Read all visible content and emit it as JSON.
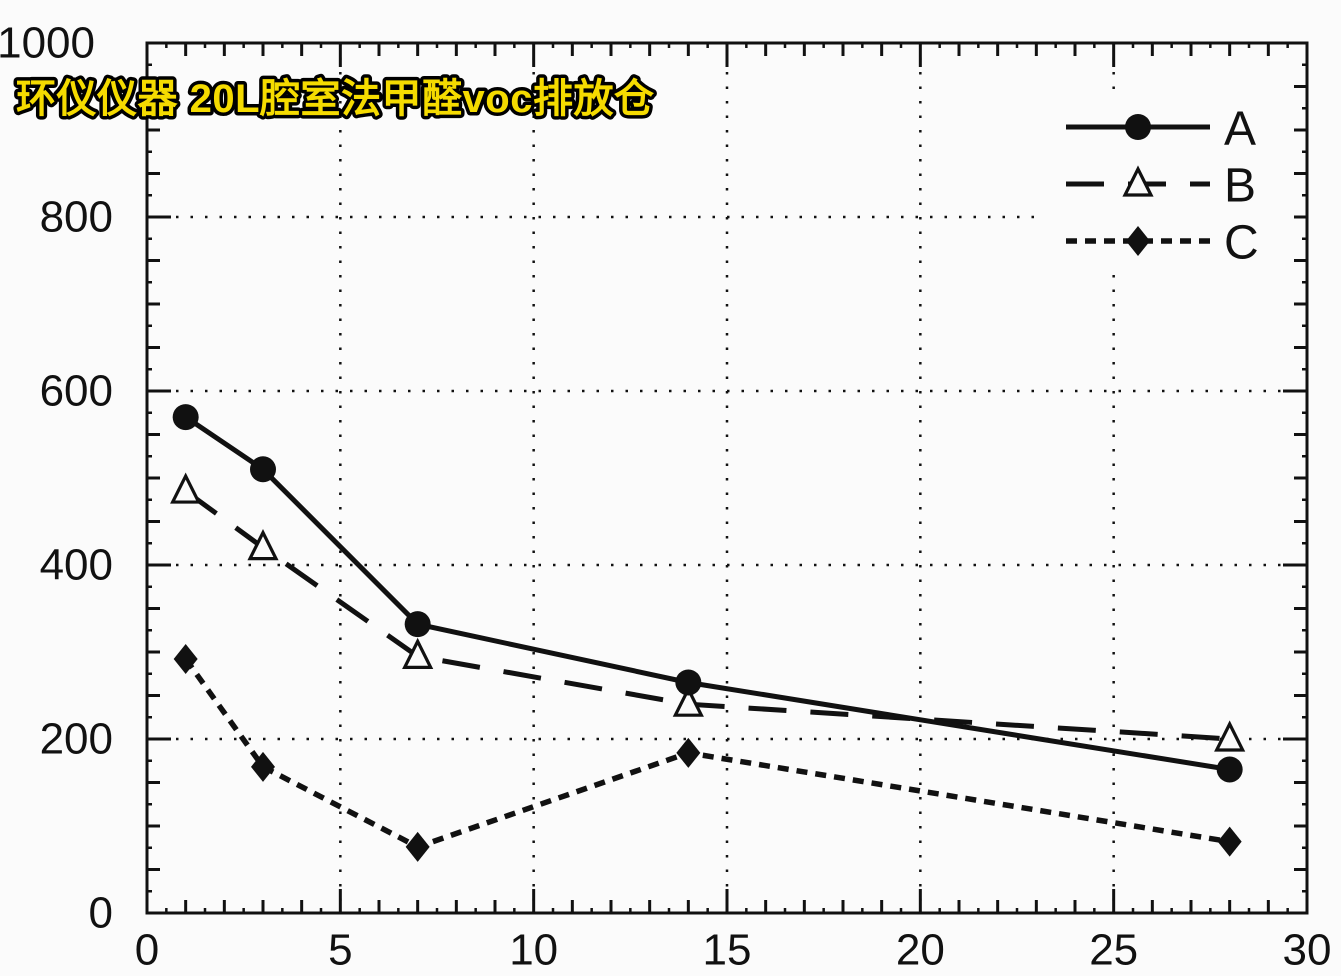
{
  "title": {
    "text": "环仪仪器 20L腔室法甲醛voc排放仓",
    "fill_color": "#F5DB00",
    "outline_color": "#000000"
  },
  "colors": {
    "background": "#FBFBFB",
    "ink": "#111111"
  },
  "chart_data": {
    "type": "line",
    "title": "环仪仪器 20L腔室法甲醛voc排放仓",
    "x": [
      1,
      3,
      7,
      14,
      28
    ],
    "series": [
      {
        "name": "A",
        "values": [
          570,
          510,
          332,
          265,
          165
        ],
        "line": "solid",
        "marker": "filled-circle"
      },
      {
        "name": "B",
        "values": [
          485,
          420,
          295,
          240,
          200
        ],
        "line": "dashed",
        "marker": "open-triangle"
      },
      {
        "name": "C",
        "values": [
          292,
          168,
          76,
          184,
          82
        ],
        "line": "dotted",
        "marker": "filled-diamond"
      }
    ],
    "xlabel": "",
    "ylabel": "",
    "xlim": [
      0,
      30
    ],
    "ylim": [
      0,
      1000
    ],
    "x_major_ticks": [
      0,
      5,
      10,
      15,
      20,
      25,
      30
    ],
    "y_major_ticks": [
      0,
      200,
      400,
      600,
      800,
      1000
    ],
    "x_minor_step": 1,
    "y_minor_step": 50,
    "grid": "dotted at major ticks, all four box edges have inward ticks",
    "legend_position": "top-right-inside",
    "legend_entries": [
      "A",
      "B",
      "C"
    ]
  }
}
